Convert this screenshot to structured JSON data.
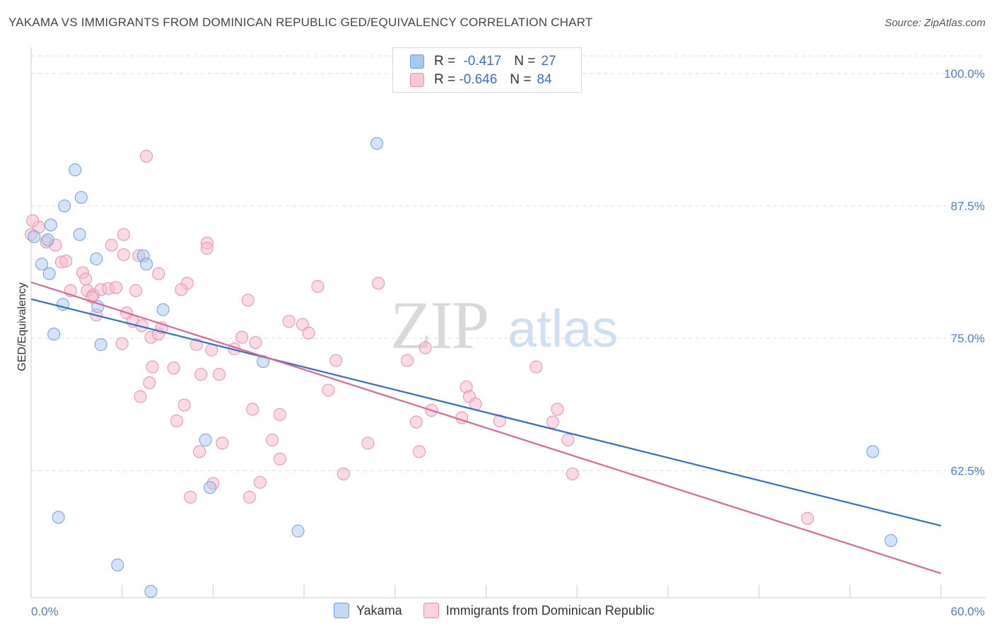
{
  "header": {
    "title": "YAKAMA VS IMMIGRANTS FROM DOMINICAN REPUBLIC GED/EQUIVALENCY CORRELATION CHART",
    "source": "Source: ZipAtlas.com"
  },
  "legend": {
    "rows": [
      {
        "r_label": "R =",
        "r_value": "-0.417",
        "n_label": "N =",
        "n_value": "27",
        "color": "#a9c8f0"
      },
      {
        "r_label": "R =",
        "r_value": "-0.646",
        "n_label": "N =",
        "n_value": "84",
        "color": "#f6b8cc"
      }
    ]
  },
  "chart_data": {
    "type": "scatter",
    "title": "YAKAMA VS IMMIGRANTS FROM DOMINICAN REPUBLIC GED/EQUIVALENCY CORRELATION CHART",
    "xlabel": "",
    "ylabel": "GED/Equivalency",
    "xlim": [
      0,
      60
    ],
    "ylim": [
      50.5,
      102.0
    ],
    "x_tick_labels": [
      "0.0%",
      "60.0%"
    ],
    "y_ticks": [
      62.5,
      75.0,
      87.5,
      100.0
    ],
    "y_tick_labels": [
      "62.5%",
      "75.0%",
      "87.5%",
      "100.0%"
    ],
    "grid": true,
    "legend_position": "top-center",
    "watermark": "ZIPatlas",
    "series": [
      {
        "name": "Yakama",
        "color": "#a9c8f0",
        "stroke": "#6e9fe0",
        "line_color": "#2f6fd0",
        "trend": {
          "x": [
            0,
            60
          ],
          "y": [
            78.7,
            57.3
          ]
        },
        "points": [
          [
            0.2,
            84.6
          ],
          [
            2.9,
            90.9
          ],
          [
            3.2,
            84.8
          ],
          [
            3.3,
            88.3
          ],
          [
            4.3,
            82.5
          ],
          [
            1.2,
            81.1
          ],
          [
            0.7,
            82.0
          ],
          [
            1.3,
            85.7
          ],
          [
            2.2,
            87.5
          ],
          [
            1.1,
            84.3
          ],
          [
            2.1,
            78.2
          ],
          [
            1.5,
            75.4
          ],
          [
            4.4,
            78.0
          ],
          [
            4.6,
            74.4
          ],
          [
            7.4,
            82.8
          ],
          [
            7.6,
            82.0
          ],
          [
            8.7,
            77.7
          ],
          [
            15.3,
            72.8
          ],
          [
            22.8,
            93.4
          ],
          [
            11.5,
            65.4
          ],
          [
            11.8,
            60.9
          ],
          [
            1.8,
            58.1
          ],
          [
            5.7,
            53.6
          ],
          [
            7.9,
            51.1
          ],
          [
            17.6,
            56.8
          ],
          [
            55.5,
            64.3
          ],
          [
            56.7,
            55.9
          ]
        ]
      },
      {
        "name": "Immigrants from Dominican Republic",
        "color": "#f6b8cc",
        "stroke": "#ec8fae",
        "line_color": "#e06595",
        "trend": {
          "x": [
            0,
            60
          ],
          "y": [
            80.3,
            52.8
          ]
        },
        "points": [
          [
            0.0,
            84.8
          ],
          [
            0.5,
            85.5
          ],
          [
            1.0,
            84.1
          ],
          [
            1.6,
            83.8
          ],
          [
            2.0,
            82.2
          ],
          [
            3.4,
            81.2
          ],
          [
            5.3,
            83.8
          ],
          [
            7.1,
            82.8
          ],
          [
            6.1,
            82.9
          ],
          [
            2.3,
            82.3
          ],
          [
            2.6,
            79.5
          ],
          [
            3.7,
            79.5
          ],
          [
            4.1,
            79.1
          ],
          [
            4.6,
            79.6
          ],
          [
            5.1,
            79.7
          ],
          [
            3.6,
            80.6
          ],
          [
            4.0,
            78.9
          ],
          [
            5.6,
            79.8
          ],
          [
            6.9,
            79.5
          ],
          [
            8.4,
            81.1
          ],
          [
            10.3,
            80.2
          ],
          [
            11.6,
            84.0
          ],
          [
            11.6,
            83.5
          ],
          [
            18.9,
            79.9
          ],
          [
            22.9,
            80.2
          ],
          [
            6.3,
            77.4
          ],
          [
            6.7,
            76.6
          ],
          [
            7.3,
            76.2
          ],
          [
            7.9,
            75.1
          ],
          [
            8.4,
            75.4
          ],
          [
            8.6,
            76.0
          ],
          [
            10.9,
            74.4
          ],
          [
            6.0,
            74.5
          ],
          [
            4.3,
            77.2
          ],
          [
            14.3,
            78.6
          ],
          [
            13.4,
            74.0
          ],
          [
            13.9,
            75.1
          ],
          [
            14.8,
            74.6
          ],
          [
            17.0,
            76.6
          ],
          [
            17.9,
            76.3
          ],
          [
            18.3,
            75.5
          ],
          [
            20.1,
            72.9
          ],
          [
            24.8,
            72.9
          ],
          [
            26.0,
            74.1
          ],
          [
            7.6,
            92.2
          ],
          [
            6.1,
            84.8
          ],
          [
            8.0,
            72.3
          ],
          [
            9.4,
            72.2
          ],
          [
            11.2,
            71.6
          ],
          [
            12.4,
            71.6
          ],
          [
            7.8,
            70.8
          ],
          [
            7.2,
            69.5
          ],
          [
            10.1,
            68.7
          ],
          [
            9.6,
            67.2
          ],
          [
            14.6,
            68.3
          ],
          [
            16.4,
            67.8
          ],
          [
            19.6,
            70.1
          ],
          [
            25.4,
            67.1
          ],
          [
            26.4,
            68.2
          ],
          [
            28.7,
            70.4
          ],
          [
            28.9,
            69.5
          ],
          [
            29.3,
            68.8
          ],
          [
            28.4,
            67.5
          ],
          [
            30.9,
            67.2
          ],
          [
            33.3,
            72.3
          ],
          [
            34.4,
            67.1
          ],
          [
            34.7,
            68.3
          ],
          [
            35.4,
            65.4
          ],
          [
            22.2,
            65.1
          ],
          [
            20.6,
            62.2
          ],
          [
            16.4,
            63.6
          ],
          [
            15.9,
            65.4
          ],
          [
            11.1,
            64.3
          ],
          [
            12.6,
            65.1
          ],
          [
            15.1,
            61.4
          ],
          [
            12.0,
            61.3
          ],
          [
            10.5,
            60.0
          ],
          [
            14.4,
            60.0
          ],
          [
            25.6,
            64.3
          ],
          [
            35.7,
            62.2
          ],
          [
            51.2,
            58.0
          ],
          [
            0.1,
            86.1
          ],
          [
            9.9,
            79.6
          ],
          [
            11.9,
            73.9
          ]
        ]
      }
    ]
  }
}
